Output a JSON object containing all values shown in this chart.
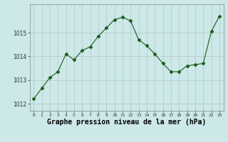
{
  "x": [
    0,
    1,
    2,
    3,
    4,
    5,
    6,
    7,
    8,
    9,
    10,
    11,
    12,
    13,
    14,
    15,
    16,
    17,
    18,
    19,
    20,
    21,
    22,
    23
  ],
  "y": [
    1012.2,
    1012.65,
    1013.1,
    1013.35,
    1014.1,
    1013.85,
    1014.25,
    1014.4,
    1014.85,
    1015.2,
    1015.55,
    1015.65,
    1015.5,
    1014.7,
    1014.45,
    1014.1,
    1013.7,
    1013.35,
    1013.35,
    1013.6,
    1013.65,
    1013.7,
    1015.05,
    1015.7
  ],
  "line_color": "#1a5c1a",
  "marker": "D",
  "marker_size": 2.5,
  "bg_color": "#cce8e8",
  "grid_color": "#aaaaaa",
  "xlabel": "Graphe pression niveau de la mer (hPa)",
  "xlabel_fontsize": 7,
  "ylabel_ticks": [
    1012,
    1013,
    1014,
    1015
  ],
  "xtick_labels": [
    "0",
    "1",
    "2",
    "3",
    "4",
    "5",
    "6",
    "7",
    "8",
    "9",
    "10",
    "11",
    "12",
    "13",
    "14",
    "15",
    "16",
    "17",
    "18",
    "19",
    "20",
    "21",
    "22",
    "23"
  ],
  "ylim": [
    1011.7,
    1016.2
  ],
  "xlim": [
    -0.5,
    23.5
  ]
}
